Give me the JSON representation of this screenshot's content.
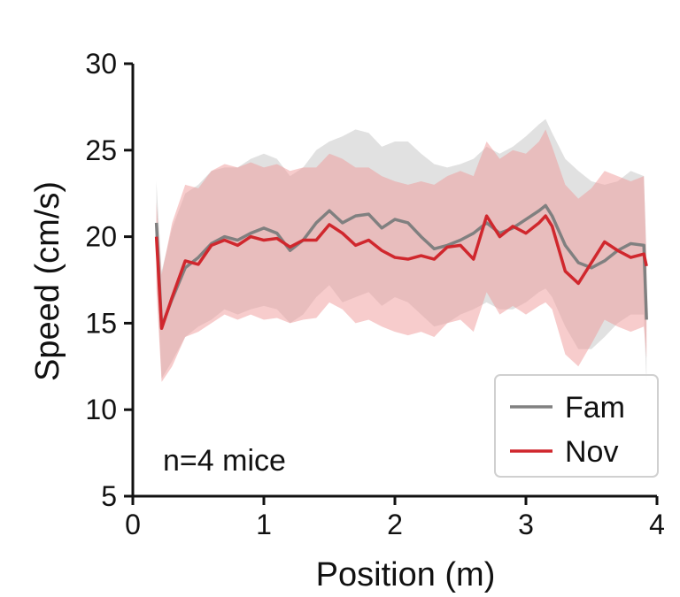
{
  "chart_data": {
    "type": "line",
    "xlabel": "Position (m)",
    "ylabel": "Speed (cm/s)",
    "xlim": [
      0,
      4
    ],
    "ylim": [
      5,
      30
    ],
    "xticks": [
      0,
      1,
      2,
      3,
      4
    ],
    "yticks": [
      5,
      10,
      15,
      20,
      25,
      30
    ],
    "xtick_labels": [
      "0",
      "1",
      "2",
      "3",
      "4"
    ],
    "ytick_labels": [
      "5",
      "10",
      "15",
      "20",
      "25",
      "30"
    ],
    "grid": false,
    "legend_position": "bottom-right",
    "annotation": "n=4 mice",
    "x": [
      0.18,
      0.22,
      0.3,
      0.4,
      0.5,
      0.6,
      0.7,
      0.8,
      0.9,
      1.0,
      1.1,
      1.2,
      1.3,
      1.4,
      1.5,
      1.6,
      1.7,
      1.8,
      1.9,
      2.0,
      2.1,
      2.2,
      2.3,
      2.4,
      2.5,
      2.6,
      2.7,
      2.8,
      2.9,
      3.0,
      3.1,
      3.15,
      3.2,
      3.3,
      3.4,
      3.5,
      3.6,
      3.7,
      3.8,
      3.9,
      3.92
    ],
    "series": [
      {
        "name": "Fam",
        "color": "#808080",
        "band_color": "#c8c8c8",
        "mean": [
          20.8,
          14.8,
          16.4,
          18.2,
          18.8,
          19.6,
          20.0,
          19.8,
          20.2,
          20.5,
          20.2,
          19.2,
          19.8,
          20.8,
          21.5,
          20.8,
          21.2,
          21.3,
          20.5,
          21.0,
          20.8,
          20.0,
          19.3,
          19.5,
          19.8,
          20.2,
          20.8,
          20.2,
          20.5,
          21.0,
          21.5,
          21.8,
          21.2,
          19.5,
          18.5,
          18.2,
          18.6,
          19.2,
          19.6,
          19.5,
          15.2
        ],
        "upper": [
          23.2,
          18.0,
          20.5,
          22.5,
          23.0,
          23.8,
          24.0,
          24.0,
          24.5,
          24.8,
          24.5,
          23.5,
          24.0,
          25.0,
          25.5,
          25.8,
          26.2,
          26.0,
          25.2,
          25.5,
          25.5,
          24.8,
          24.2,
          24.0,
          24.2,
          24.5,
          25.2,
          24.8,
          25.2,
          25.8,
          26.5,
          26.8,
          26.0,
          24.5,
          23.8,
          23.2,
          23.0,
          23.2,
          23.8,
          23.5,
          19.0
        ],
        "lower": [
          18.0,
          11.8,
          12.8,
          14.2,
          14.8,
          15.2,
          15.8,
          15.5,
          15.8,
          16.0,
          15.8,
          15.0,
          15.5,
          16.5,
          17.2,
          16.2,
          16.5,
          16.8,
          16.0,
          16.5,
          16.2,
          15.5,
          14.8,
          15.0,
          15.5,
          15.8,
          16.2,
          15.8,
          15.8,
          16.2,
          16.8,
          17.0,
          16.5,
          14.8,
          13.5,
          13.5,
          14.2,
          15.0,
          15.5,
          15.5,
          11.5
        ]
      },
      {
        "name": "Nov",
        "color": "#d0272d",
        "band_color": "#ef9a9a",
        "mean": [
          20.0,
          14.7,
          16.5,
          18.6,
          18.4,
          19.5,
          19.8,
          19.5,
          20.0,
          19.8,
          19.9,
          19.4,
          19.8,
          19.8,
          20.7,
          20.2,
          19.5,
          19.8,
          19.2,
          18.8,
          18.7,
          18.9,
          18.7,
          19.4,
          19.5,
          18.7,
          21.2,
          20.0,
          20.6,
          20.2,
          20.8,
          21.2,
          20.6,
          18.0,
          17.3,
          18.5,
          19.7,
          19.2,
          18.8,
          19.0,
          18.3
        ],
        "upper": [
          22.0,
          17.8,
          20.8,
          23.0,
          22.8,
          23.8,
          24.2,
          24.0,
          24.3,
          24.0,
          24.2,
          23.8,
          24.0,
          24.0,
          24.8,
          24.5,
          24.0,
          24.0,
          23.5,
          23.2,
          23.0,
          23.2,
          23.0,
          23.5,
          23.8,
          23.5,
          25.5,
          24.5,
          25.0,
          24.8,
          25.5,
          26.2,
          25.2,
          23.0,
          22.2,
          22.8,
          23.8,
          23.5,
          23.2,
          23.5,
          18.5
        ],
        "lower": [
          17.0,
          11.6,
          12.5,
          14.2,
          14.5,
          15.0,
          15.5,
          15.2,
          15.5,
          15.2,
          15.3,
          15.0,
          15.2,
          15.3,
          16.2,
          15.8,
          15.0,
          15.2,
          14.8,
          14.5,
          14.3,
          14.5,
          14.2,
          15.0,
          15.2,
          14.5,
          16.8,
          15.5,
          16.0,
          15.5,
          16.0,
          16.2,
          15.8,
          13.2,
          12.5,
          13.8,
          15.2,
          14.8,
          14.5,
          14.8,
          13.0
        ]
      }
    ]
  }
}
